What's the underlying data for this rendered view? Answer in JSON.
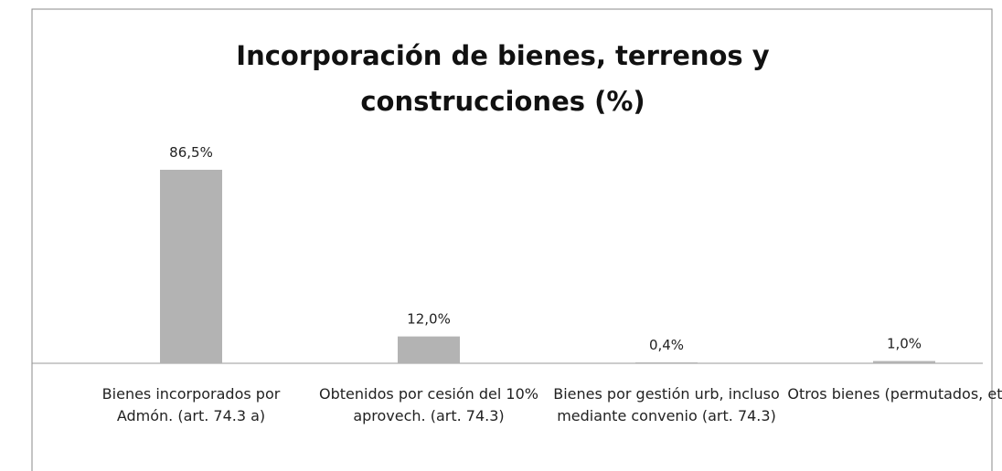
{
  "chart_data": {
    "type": "bar",
    "title": "Incorporación de bienes, terrenos y construcciones (%)",
    "categories": [
      "Bienes incorporados por Admón. (art. 74.3 a)",
      "Obtenidos por cesión del 10% aprovech. (art. 74.3)",
      "Bienes por gestión urb, incluso mediante convenio (art. 74.3)",
      "Otros bienes (permutados, etc.)"
    ],
    "values": [
      86.5,
      12.0,
      0.4,
      1.0
    ],
    "value_labels": [
      "86,5%",
      "12,0%",
      "0,4%",
      "1,0%"
    ],
    "color": "#b3b3b3"
  }
}
